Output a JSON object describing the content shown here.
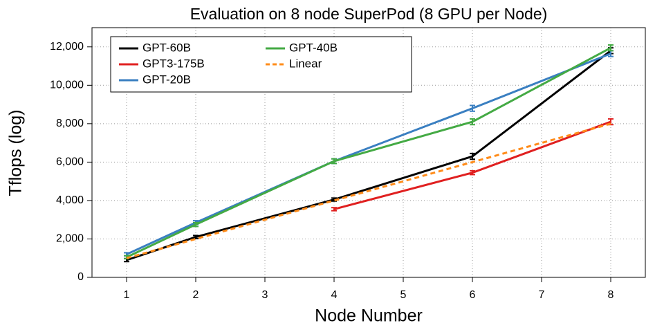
{
  "chart_data": {
    "type": "line",
    "title": "Evaluation on 8 node SuperPod (8 GPU per Node)",
    "x_label": "Node Number",
    "y_label": "Tflops (log)",
    "xlim": [
      0.5,
      8.5
    ],
    "xticks": [
      1,
      2,
      3,
      4,
      5,
      6,
      7,
      8
    ],
    "ylim": [
      0,
      13000
    ],
    "yticks": [
      0,
      {
        "value": 2000,
        "label": "2,000"
      },
      {
        "value": 4000,
        "label": "4,000"
      },
      {
        "value": 6000,
        "label": "6,000"
      },
      {
        "value": 8000,
        "label": "8,000"
      },
      {
        "value": 10000,
        "label": "10,000"
      },
      {
        "value": 12000,
        "label": "12,000"
      }
    ],
    "grid": true,
    "legend_position": "upper-left",
    "series": [
      {
        "name": "GPT-60B",
        "color": "#000000",
        "x": [
          1,
          2,
          4,
          6,
          8
        ],
        "values": [
          900,
          2100,
          4050,
          6300,
          11800
        ],
        "errors": [
          80,
          80,
          80,
          150,
          150
        ]
      },
      {
        "name": "GPT3-175B",
        "color": "#e02020",
        "x": [
          4,
          6,
          8
        ],
        "values": [
          3550,
          5450,
          8100
        ],
        "errors": [
          80,
          100,
          150
        ]
      },
      {
        "name": "GPT-20B",
        "color": "#3a7fc1",
        "x": [
          1,
          2,
          4,
          6,
          8
        ],
        "values": [
          1200,
          2850,
          6050,
          8800,
          11650
        ],
        "errors": [
          80,
          100,
          120,
          150,
          150
        ]
      },
      {
        "name": "GPT-40B",
        "color": "#44aa44",
        "x": [
          1,
          2,
          4,
          6,
          8
        ],
        "values": [
          1050,
          2750,
          6050,
          8100,
          11950
        ],
        "errors": [
          80,
          100,
          120,
          150,
          150
        ]
      },
      {
        "name": "Linear",
        "color": "#ff8c1a",
        "dashed": true,
        "x": [
          1,
          2,
          4,
          6,
          8
        ],
        "values": [
          1000,
          2000,
          4000,
          6000,
          8000
        ]
      }
    ]
  }
}
